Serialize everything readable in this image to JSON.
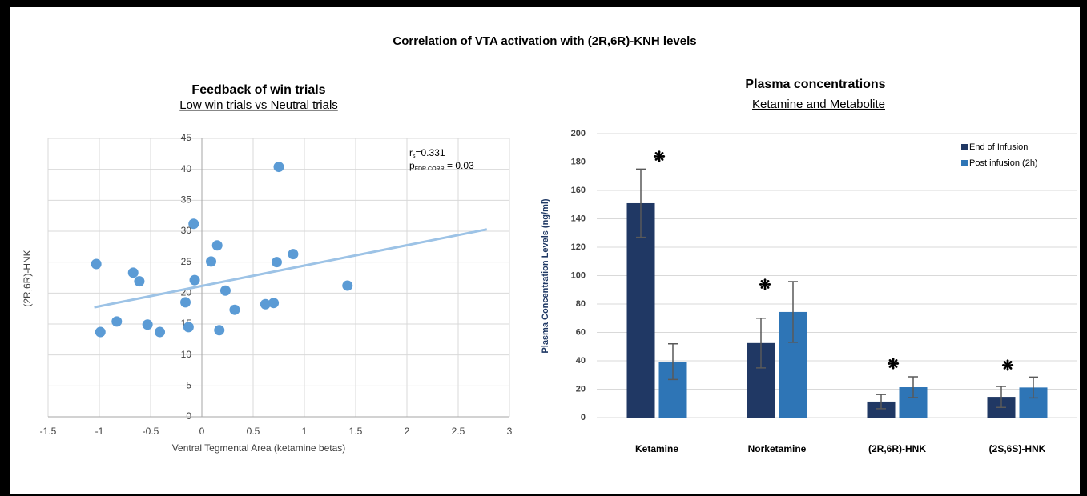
{
  "title": "Correlation of VTA activation with (2R,6R)-KNH levels",
  "chart_data": [
    {
      "type": "scatter",
      "title": "Feedback of win trials",
      "subtitle": "Low win trials vs Neutral trials",
      "x_label": "Ventral Tegmental Area (ketamine betas)",
      "y_label": "(2R,6R)-HNK",
      "x": [
        -1.03,
        -0.99,
        -0.83,
        -0.67,
        -0.61,
        -0.53,
        -0.41,
        -0.16,
        -0.13,
        -0.08,
        -0.07,
        0.09,
        0.15,
        0.17,
        0.23,
        0.32,
        0.62,
        0.7,
        0.73,
        0.75,
        0.89,
        1.42
      ],
      "y": [
        24.7,
        13.7,
        15.4,
        23.3,
        21.9,
        14.9,
        13.7,
        18.5,
        14.5,
        31.2,
        22.1,
        25.1,
        27.7,
        14.0,
        20.4,
        17.3,
        18.2,
        18.4,
        25.0,
        40.4,
        26.3,
        21.2
      ],
      "color": "#5b9bd5",
      "trendline": {
        "x": [
          -1.05,
          2.78
        ],
        "y": [
          17.7,
          30.3
        ],
        "color": "#9dc3e6"
      },
      "annotations": [
        {
          "text": "r",
          "sub": "s",
          "after": "=0.331"
        },
        {
          "text": "p",
          "sub": "FDR CORR",
          "after": " = 0.03"
        }
      ],
      "xlim": [
        -1.5,
        3
      ],
      "ylim": [
        0,
        45
      ],
      "xticks": [
        -1.5,
        -1,
        -0.5,
        0,
        0.5,
        1,
        1.5,
        2,
        2.5,
        3
      ],
      "yticks": [
        0,
        5,
        10,
        15,
        20,
        25,
        30,
        35,
        40,
        45
      ],
      "grid": true
    },
    {
      "type": "bar",
      "title": "Plasma concentrations",
      "subtitle": "Ketamine and Metabolite",
      "y_label": "Plasma Concentration Levels (ng/ml)",
      "categories": [
        "Ketamine",
        "Norketamine",
        "(2R,6R)-HNK",
        "(2S,6S)-HNK"
      ],
      "series": [
        {
          "name": "End of Infusion",
          "color": "#203864",
          "values": [
            151,
            52.5,
            11.3,
            14.6
          ],
          "errors": [
            24,
            17.5,
            5,
            7.4
          ]
        },
        {
          "name": "Post infusion (2h)",
          "color": "#2e75b6",
          "values": [
            39.4,
            74.4,
            21.4,
            21.2
          ],
          "errors": [
            12.6,
            21.4,
            7.3,
            7.3
          ]
        }
      ],
      "significance": [
        "❋",
        "❋",
        "❋",
        "❋"
      ],
      "ylim": [
        0,
        200
      ],
      "yticks": [
        0,
        20,
        40,
        60,
        80,
        100,
        120,
        140,
        160,
        180,
        200
      ],
      "grid": true,
      "legend": "top-right",
      "error_color": "#595959",
      "y_label_color": "#1f3864"
    }
  ]
}
